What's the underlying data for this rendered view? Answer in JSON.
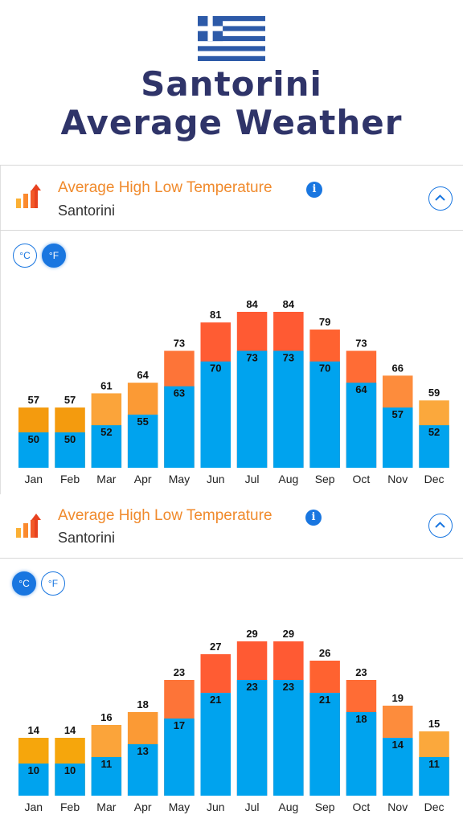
{
  "page": {
    "title_line1": "Santorini",
    "title_line2": "Average Weather"
  },
  "colors": {
    "title": "#2f3469",
    "header_orange": "#f08a2c",
    "low_blue": "#00a3ee",
    "accent_blue": "#1976e0"
  },
  "panels": [
    {
      "title": "Average High Low Temperature",
      "subtitle": "Santorini",
      "info_label": "i",
      "unit_c": "°C",
      "unit_f": "°F",
      "active_unit": "F",
      "icons": [
        "bar-chart-icon",
        "info-icon",
        "chevron-up-icon"
      ]
    },
    {
      "title": "Average High Low Temperature",
      "subtitle": "Santorini",
      "info_label": "i",
      "unit_c": "°C",
      "unit_f": "°F",
      "active_unit": "C",
      "icons": [
        "bar-chart-icon",
        "info-icon",
        "chevron-up-icon"
      ]
    }
  ],
  "chart_data": [
    {
      "type": "bar",
      "categories": [
        "Jan",
        "Feb",
        "Mar",
        "Apr",
        "May",
        "Jun",
        "Jul",
        "Aug",
        "Sep",
        "Oct",
        "Nov",
        "Dec"
      ],
      "series": [
        {
          "values": [
            57,
            57,
            61,
            64,
            73,
            81,
            84,
            84,
            79,
            73,
            66,
            59
          ]
        },
        {
          "values": [
            50,
            50,
            52,
            55,
            63,
            70,
            73,
            73,
            70,
            64,
            57,
            52
          ]
        }
      ],
      "high_colors": [
        "#f49b0e",
        "#f49b0e",
        "#fba43a",
        "#fb9a35",
        "#fd7438",
        "#ff5c33",
        "#ff5a33",
        "#ff5a33",
        "#ff6230",
        "#ff6c35",
        "#fd8c3c",
        "#fba83c"
      ],
      "ylim": [
        40,
        90
      ]
    },
    {
      "type": "bar",
      "categories": [
        "Jan",
        "Feb",
        "Mar",
        "Apr",
        "May",
        "Jun",
        "Jul",
        "Aug",
        "Sep",
        "Oct",
        "Nov",
        "Dec"
      ],
      "series": [
        {
          "values": [
            14,
            14,
            16,
            18,
            23,
            27,
            29,
            29,
            26,
            23,
            19,
            15
          ]
        },
        {
          "values": [
            10,
            10,
            11,
            13,
            17,
            21,
            23,
            23,
            21,
            18,
            14,
            11
          ]
        }
      ],
      "high_colors": [
        "#f6a60c",
        "#f6a60c",
        "#fba43a",
        "#fb9a35",
        "#fd7438",
        "#ff5c33",
        "#ff5a33",
        "#ff5a33",
        "#ff6230",
        "#ff6c35",
        "#fd8c3c",
        "#fba83c"
      ],
      "ylim": [
        5,
        31
      ]
    }
  ]
}
